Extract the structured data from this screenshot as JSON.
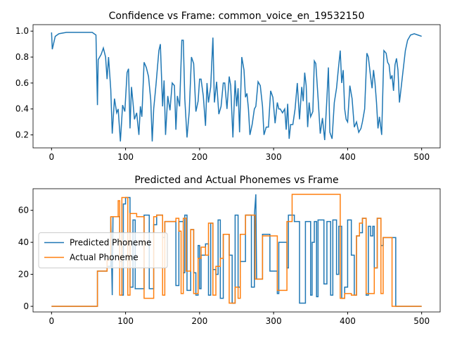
{
  "chart_data": [
    {
      "type": "line",
      "title": "Confidence vs Frame: common_voice_en_19532150",
      "xlim": [
        -25,
        525
      ],
      "xticks": [
        0,
        100,
        200,
        300,
        400,
        500
      ],
      "ylim": [
        0.1,
        1.05
      ],
      "yticks": [
        0.2,
        0.4,
        0.6,
        0.8,
        {
          "value": 1,
          "label": "1.0"
        }
      ],
      "series": [
        {
          "color": "#1f77b4",
          "x": [
            0,
            1,
            5,
            10,
            20,
            40,
            55,
            60,
            62,
            63,
            67,
            70,
            73,
            75,
            77,
            80,
            82,
            85,
            88,
            90,
            93,
            96,
            99,
            102,
            104,
            106,
            108,
            110,
            112,
            115,
            118,
            120,
            122,
            125,
            128,
            131,
            134,
            136,
            138,
            141,
            145,
            147,
            150,
            152,
            154,
            157,
            160,
            163,
            166,
            168,
            170,
            173,
            176,
            178,
            180,
            183,
            186,
            189,
            192,
            195,
            198,
            200,
            202,
            205,
            208,
            210,
            212,
            215,
            218,
            220,
            223,
            226,
            229,
            232,
            234,
            237,
            240,
            242,
            245,
            248,
            250,
            252,
            254,
            257,
            260,
            262,
            264,
            266,
            268,
            271,
            274,
            276,
            279,
            282,
            285,
            287,
            290,
            293,
            296,
            299,
            302,
            305,
            307,
            309,
            312,
            315,
            317,
            319,
            321,
            323,
            326,
            329,
            332,
            335,
            338,
            340,
            342,
            344,
            346,
            348,
            350,
            353,
            355,
            357,
            360,
            363,
            366,
            369,
            372,
            374,
            376,
            379,
            382,
            385,
            387,
            390,
            392,
            394,
            396,
            398,
            400,
            403,
            406,
            409,
            412,
            415,
            418,
            420,
            423,
            426,
            428,
            431,
            433,
            435,
            437,
            439,
            441,
            443,
            446,
            449,
            452,
            454,
            456,
            458,
            460,
            462,
            464,
            466,
            468,
            470,
            472,
            475,
            478,
            481,
            485,
            490,
            495,
            500
          ],
          "values": [
            0.99,
            0.86,
            0.96,
            0.98,
            0.99,
            0.99,
            0.99,
            0.97,
            0.43,
            0.78,
            0.82,
            0.87,
            0.8,
            0.63,
            0.8,
            0.55,
            0.21,
            0.48,
            0.37,
            0.4,
            0.15,
            0.43,
            0.38,
            0.68,
            0.71,
            0.25,
            0.57,
            0.45,
            0.32,
            0.37,
            0.2,
            0.42,
            0.34,
            0.76,
            0.72,
            0.65,
            0.47,
            0.15,
            0.4,
            0.58,
            0.85,
            0.9,
            0.42,
            0.62,
            0.2,
            0.5,
            0.39,
            0.6,
            0.58,
            0.24,
            0.5,
            0.42,
            0.93,
            0.93,
            0.48,
            0.18,
            0.38,
            0.8,
            0.75,
            0.38,
            0.46,
            0.63,
            0.63,
            0.5,
            0.27,
            0.6,
            0.45,
            0.57,
            0.95,
            0.45,
            0.61,
            0.36,
            0.42,
            0.6,
            0.6,
            0.4,
            0.65,
            0.58,
            0.18,
            0.62,
            0.42,
            0.56,
            0.22,
            0.8,
            0.7,
            0.49,
            0.52,
            0.4,
            0.2,
            0.28,
            0.4,
            0.42,
            0.61,
            0.58,
            0.42,
            0.2,
            0.26,
            0.26,
            0.54,
            0.49,
            0.29,
            0.45,
            0.4,
            0.4,
            0.37,
            0.4,
            0.24,
            0.44,
            0.17,
            0.28,
            0.28,
            0.4,
            0.6,
            0.32,
            0.57,
            0.46,
            0.68,
            0.58,
            0.26,
            0.45,
            0.34,
            0.38,
            0.77,
            0.75,
            0.49,
            0.21,
            0.33,
            0.16,
            0.48,
            0.72,
            0.22,
            0.17,
            0.45,
            0.56,
            0.68,
            0.85,
            0.6,
            0.7,
            0.4,
            0.32,
            0.3,
            0.58,
            0.48,
            0.26,
            0.3,
            0.22,
            0.25,
            0.3,
            0.4,
            0.83,
            0.8,
            0.65,
            0.56,
            0.7,
            0.6,
            0.45,
            0.25,
            0.34,
            0.2,
            0.85,
            0.83,
            0.76,
            0.74,
            0.63,
            0.66,
            0.54,
            0.74,
            0.79,
            0.7,
            0.45,
            0.55,
            0.7,
            0.85,
            0.93,
            0.97,
            0.98,
            0.97,
            0.96
          ]
        }
      ]
    },
    {
      "type": "line",
      "title": "Predicted and Actual Phonemes vs Frame",
      "xlim": [
        -25,
        525
      ],
      "xticks": [
        0,
        100,
        200,
        300,
        400,
        500
      ],
      "ylim": [
        -3.5,
        73.5
      ],
      "yticks": [
        0,
        20,
        40,
        60
      ],
      "legend": "center left",
      "series": [
        {
          "name": "Predicted Phoneme",
          "color": "#1f77b4",
          "x": [
            0,
            62,
            62,
            75,
            75,
            80,
            80,
            82,
            83,
            92,
            92,
            95,
            95,
            97,
            97,
            100,
            100,
            106,
            106,
            110,
            110,
            113,
            113,
            125,
            125,
            132,
            132,
            138,
            138,
            142,
            142,
            150,
            150,
            153,
            153,
            168,
            168,
            172,
            172,
            178,
            178,
            180,
            180,
            183,
            183,
            188,
            188,
            192,
            192,
            195,
            195,
            198,
            198,
            200,
            200,
            202,
            202,
            208,
            208,
            212,
            212,
            215,
            215,
            218,
            218,
            222,
            222,
            225,
            225,
            228,
            228,
            232,
            232,
            240,
            240,
            244,
            244,
            248,
            248,
            252,
            252,
            255,
            255,
            262,
            262,
            270,
            270,
            274,
            274,
            276,
            277,
            285,
            285,
            295,
            295,
            305,
            305,
            307,
            307,
            318,
            318,
            320,
            320,
            328,
            328,
            335,
            335,
            343,
            343,
            350,
            350,
            352,
            352,
            355,
            355,
            358,
            358,
            360,
            360,
            368,
            368,
            372,
            372,
            377,
            377,
            380,
            380,
            385,
            385,
            388,
            388,
            392,
            392,
            396,
            396,
            400,
            400,
            405,
            405,
            409,
            409,
            412,
            412,
            416,
            416,
            420,
            420,
            425,
            425,
            428,
            428,
            431,
            431,
            434,
            434,
            436,
            436,
            440,
            440,
            445,
            445,
            448,
            448,
            465,
            465,
            500
          ],
          "values": [
            0,
            0,
            22,
            22,
            25,
            25,
            56,
            7,
            56,
            56,
            28,
            28,
            7,
            7,
            64,
            64,
            68,
            68,
            12,
            12,
            54,
            54,
            11,
            11,
            57,
            57,
            11,
            11,
            51,
            51,
            57,
            57,
            43,
            43,
            53,
            53,
            13,
            13,
            53,
            53,
            21,
            21,
            57,
            57,
            10,
            10,
            48,
            48,
            21,
            21,
            7,
            7,
            38,
            38,
            11,
            11,
            32,
            32,
            39,
            39,
            7,
            7,
            52,
            52,
            23,
            23,
            20,
            20,
            54,
            54,
            5,
            5,
            45,
            45,
            32,
            32,
            2,
            2,
            57,
            57,
            12,
            12,
            28,
            28,
            57,
            57,
            12,
            12,
            57,
            70,
            17,
            17,
            45,
            45,
            22,
            22,
            8,
            8,
            40,
            40,
            24,
            24,
            57,
            57,
            53,
            53,
            2,
            2,
            53,
            53,
            7,
            7,
            40,
            40,
            53,
            53,
            6,
            6,
            54,
            54,
            14,
            14,
            53,
            53,
            7,
            7,
            54,
            54,
            20,
            20,
            50,
            50,
            5,
            5,
            12,
            12,
            54,
            54,
            32,
            32,
            7,
            7,
            44,
            44,
            46,
            46,
            55,
            55,
            7,
            7,
            50,
            50,
            44,
            44,
            50,
            50,
            24,
            24,
            55,
            55,
            38,
            38,
            43,
            43,
            0,
            0
          ]
        },
        {
          "name": "Actual Phoneme",
          "color": "#ff7f0e",
          "x": [
            0,
            62,
            62,
            75,
            75,
            80,
            80,
            90,
            90,
            92,
            92,
            95,
            95,
            103,
            103,
            106,
            106,
            115,
            115,
            125,
            125,
            138,
            138,
            142,
            142,
            150,
            150,
            153,
            153,
            168,
            168,
            172,
            172,
            175,
            175,
            178,
            178,
            182,
            182,
            188,
            188,
            192,
            192,
            198,
            198,
            202,
            202,
            208,
            208,
            212,
            212,
            218,
            218,
            222,
            222,
            228,
            228,
            232,
            232,
            240,
            240,
            248,
            248,
            252,
            252,
            255,
            255,
            262,
            262,
            275,
            275,
            285,
            285,
            305,
            305,
            318,
            318,
            325,
            325,
            390,
            390,
            396,
            396,
            405,
            405,
            412,
            412,
            416,
            416,
            420,
            420,
            425,
            425,
            436,
            436,
            440,
            440,
            445,
            445,
            448,
            448,
            460,
            460,
            500
          ],
          "values": [
            0,
            0,
            22,
            22,
            29,
            29,
            56,
            56,
            66,
            66,
            7,
            7,
            68,
            68,
            7,
            7,
            58,
            58,
            56,
            56,
            5,
            5,
            56,
            56,
            57,
            57,
            7,
            7,
            53,
            53,
            55,
            55,
            47,
            47,
            8,
            8,
            55,
            55,
            22,
            22,
            48,
            48,
            8,
            8,
            30,
            30,
            37,
            37,
            32,
            32,
            52,
            52,
            7,
            7,
            25,
            25,
            30,
            30,
            45,
            45,
            2,
            2,
            12,
            12,
            5,
            5,
            45,
            45,
            57,
            57,
            17,
            17,
            44,
            44,
            10,
            10,
            53,
            53,
            70,
            70,
            5,
            5,
            8,
            8,
            7,
            7,
            44,
            44,
            52,
            52,
            55,
            55,
            8,
            8,
            24,
            24,
            55,
            55,
            8,
            8,
            43,
            43,
            0,
            0
          ]
        }
      ]
    }
  ]
}
